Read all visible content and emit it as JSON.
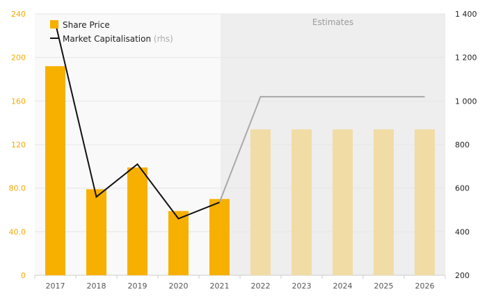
{
  "chart_data": {
    "type": "bar",
    "categories": [
      "2017",
      "2018",
      "2019",
      "2020",
      "2021",
      "2022",
      "2023",
      "2024",
      "2025",
      "2026"
    ],
    "series": [
      {
        "name": "Share Price",
        "kind": "bar",
        "axis": "left",
        "values": [
          192,
          79,
          99,
          59,
          70,
          134,
          134,
          134,
          134,
          134
        ],
        "estimate_from_index": 5
      },
      {
        "name": "Market Capitalisation",
        "name_suffix": "(rhs)",
        "kind": "line",
        "axis": "right",
        "values": [
          1360,
          560,
          710,
          460,
          535,
          1020,
          1020,
          1020,
          1020,
          1020
        ],
        "estimate_from_index": 4
      }
    ],
    "ylim_left": [
      0,
      240
    ],
    "yticks_left": [
      "0",
      "40.0",
      "80.0",
      "120",
      "160",
      "200",
      "240"
    ],
    "ylim_right": [
      200,
      1400
    ],
    "yticks_right": [
      "200",
      "400",
      "600",
      "800",
      "1 000",
      "1 200",
      "1 400"
    ],
    "estimates_label": "Estimates",
    "estimates_start_index": 5,
    "legend_position": "top-left",
    "grid": true,
    "colors": {
      "bar": "#f7b000",
      "bar_estimate": "#f2dca6",
      "line": "#111111",
      "line_estimate": "#a8a8a8",
      "estimate_band": "#eeeeee",
      "plot_bg": "#f9f9f9",
      "left_axis_text": "#f2a900"
    }
  }
}
